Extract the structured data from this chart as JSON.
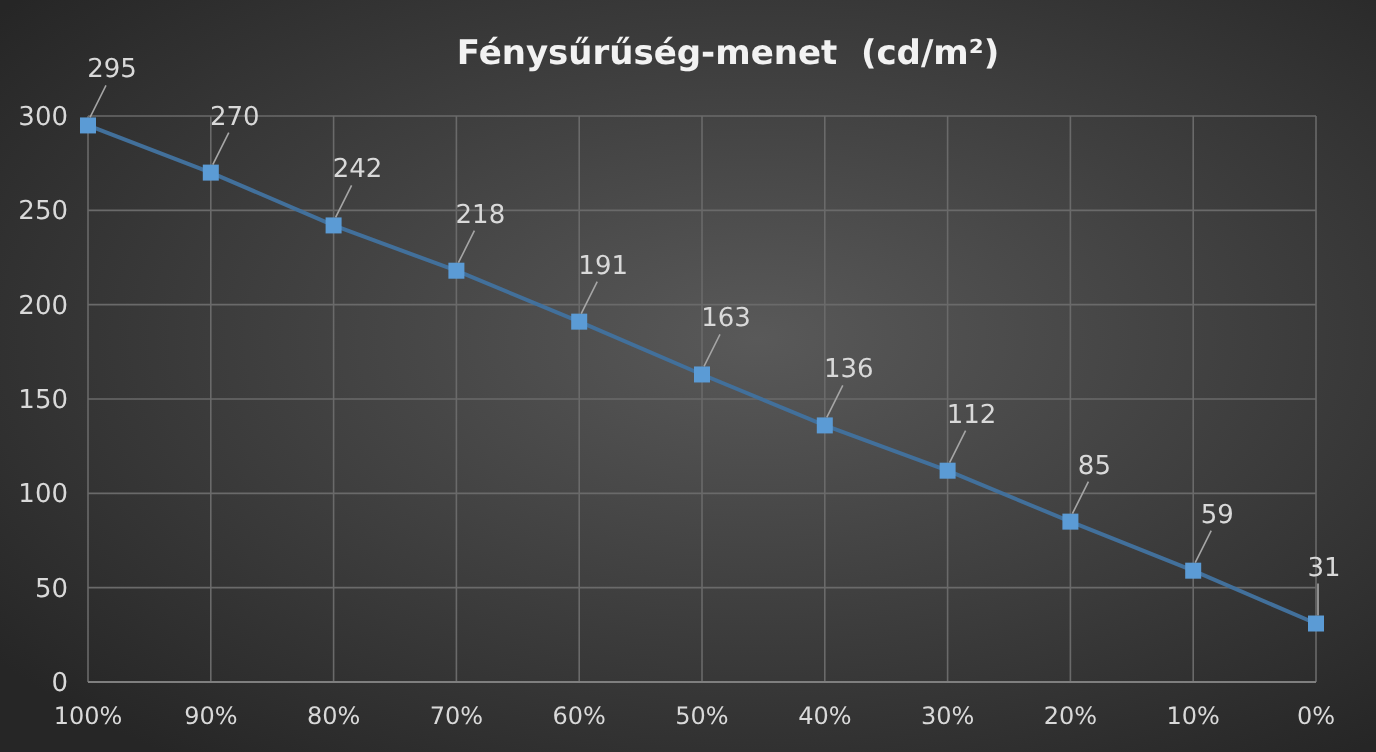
{
  "chart_data": {
    "type": "line",
    "title": "Fénysűrűség-menet  (cd/m²)",
    "categories": [
      "100%",
      "90%",
      "80%",
      "70%",
      "60%",
      "50%",
      "40%",
      "30%",
      "20%",
      "10%",
      "0%"
    ],
    "series": [
      {
        "color": "#5b9bd5",
        "values": [
          295,
          270,
          242,
          218,
          191,
          163,
          136,
          112,
          85,
          59,
          31
        ]
      }
    ],
    "ylim": [
      0,
      300
    ],
    "yticks": [
      0,
      50,
      100,
      150,
      200,
      250,
      300
    ],
    "grid": true,
    "marker": "square",
    "line_style": "solid",
    "data_labels": true
  }
}
